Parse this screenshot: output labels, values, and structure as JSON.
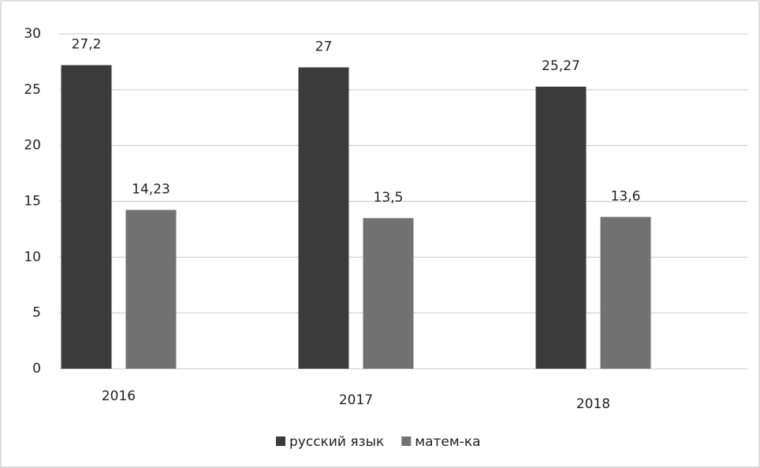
{
  "chart_data": {
    "type": "bar",
    "categories": [
      "2016",
      "2017",
      "2018"
    ],
    "series": [
      {
        "name": "русский язык",
        "color": "#3b3b3b",
        "values": [
          27.2,
          27,
          25.27
        ],
        "value_labels": [
          "27,2",
          "27",
          "25,27"
        ]
      },
      {
        "name": "матем-ка",
        "color": "#727272",
        "values": [
          14.23,
          13.5,
          13.6
        ],
        "value_labels": [
          "14,23",
          "13,5",
          "13,6"
        ]
      }
    ],
    "ylim": [
      0,
      30
    ],
    "yticks": [
      0,
      5,
      10,
      15,
      20,
      25,
      30
    ],
    "grid": true,
    "legend": "bottom"
  }
}
